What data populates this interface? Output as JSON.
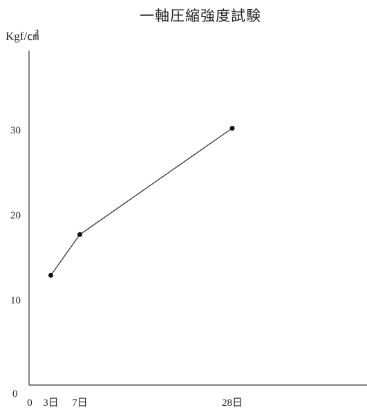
{
  "chart_data": {
    "type": "line",
    "title": "一軸圧縮強度試験",
    "ylabel": "Kgf/㎠",
    "xlabel": "",
    "x_origin_label": "0",
    "y_origin_label": "0",
    "categories": [
      "3日",
      "7日",
      "28日"
    ],
    "x": [
      3,
      7,
      28
    ],
    "xlim": [
      0,
      38
    ],
    "ylim": [
      0,
      40
    ],
    "y_ticks": [
      10,
      20,
      30
    ],
    "grid": false,
    "series": [
      {
        "values": [
          12.9,
          17.7,
          30.2
        ],
        "color": "#333333"
      }
    ]
  }
}
